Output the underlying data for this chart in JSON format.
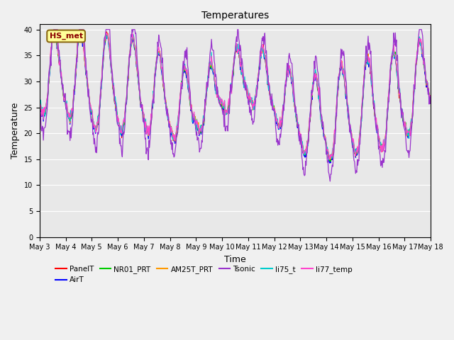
{
  "title": "Temperatures",
  "xlabel": "Time",
  "ylabel": "Temperature",
  "ylim": [
    0,
    41
  ],
  "yticks": [
    0,
    5,
    10,
    15,
    20,
    25,
    30,
    35,
    40
  ],
  "plot_bg": "#e8e8e8",
  "fig_bg": "#f0f0f0",
  "annotation_text": "HS_met",
  "annotation_color": "#8b0000",
  "annotation_bg": "#ffff99",
  "annotation_edge": "#8b6914",
  "series": [
    {
      "label": "PanelT",
      "color": "#ff0000",
      "lw": 0.9
    },
    {
      "label": "AirT",
      "color": "#0000ff",
      "lw": 0.9
    },
    {
      "label": "NR01_PRT",
      "color": "#00cc00",
      "lw": 0.9
    },
    {
      "label": "AM25T_PRT",
      "color": "#ff9900",
      "lw": 0.9
    },
    {
      "label": "Tsonic",
      "color": "#9933cc",
      "lw": 0.9
    },
    {
      "label": "li75_t",
      "color": "#00cccc",
      "lw": 0.9
    },
    {
      "label": "li77_temp",
      "color": "#ff44cc",
      "lw": 0.9
    }
  ]
}
